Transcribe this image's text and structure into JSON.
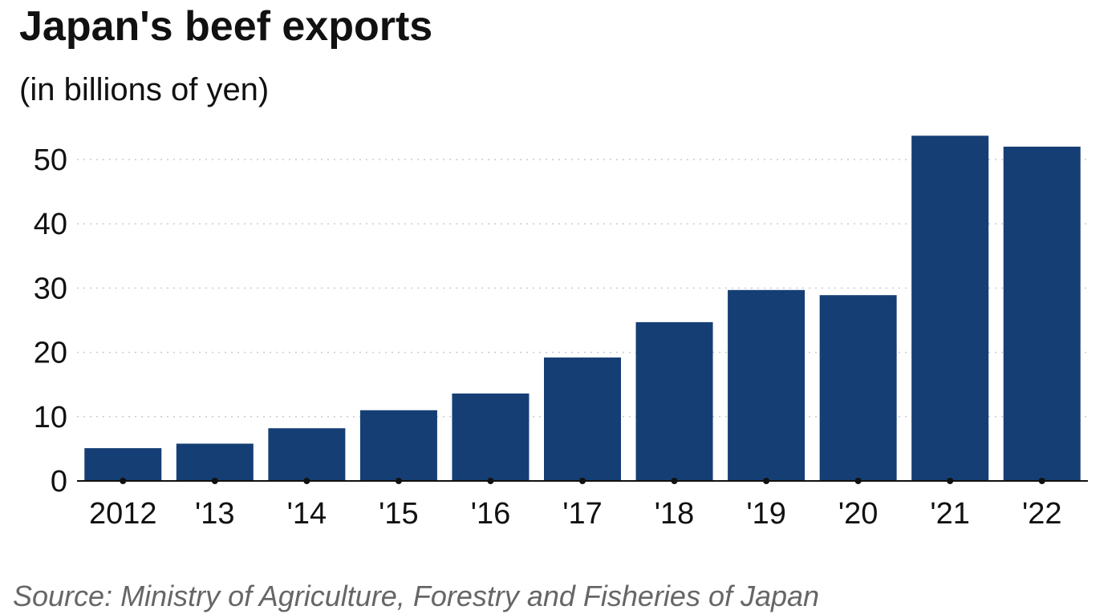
{
  "title": "Japan's beef exports",
  "subtitle": "(in billions of yen)",
  "source": "Source: Ministry of Agriculture, Forestry and Fisheries of Japan",
  "chart_data": {
    "type": "bar",
    "categories": [
      "2012",
      "'13",
      "'14",
      "'15",
      "'16",
      "'17",
      "'18",
      "'19",
      "'20",
      "'21",
      "'22"
    ],
    "values": [
      5.1,
      5.8,
      8.2,
      11.0,
      13.6,
      19.2,
      24.7,
      29.7,
      28.9,
      53.7,
      52.0
    ],
    "yticks": [
      0,
      10,
      20,
      30,
      40,
      50
    ],
    "ylim": [
      0,
      55
    ],
    "grid": true,
    "colors": {
      "bar": "#153e75",
      "grid": "#c8ccd2",
      "axis": "#111111"
    }
  }
}
